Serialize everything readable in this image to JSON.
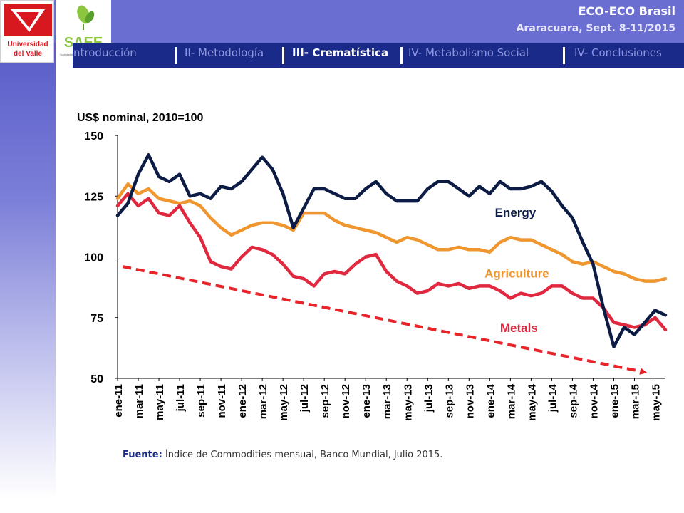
{
  "header": {
    "title": "ECO-ECO Brasil",
    "subtitle": "Araracuara, Sept. 8-11/2015",
    "logo_univalle_line1": "Universidad",
    "logo_univalle_line2": "del Valle",
    "logo_saee_text": "SAEE",
    "logo_saee_tagline": "Sociedad Andina de Economía Ecológica"
  },
  "nav": {
    "items": [
      {
        "label": "I- Introducción",
        "active": false
      },
      {
        "label": "II- Metodología",
        "active": false
      },
      {
        "label": "III- Crematística",
        "active": true
      },
      {
        "label": "IV- Metabolismo Social",
        "active": false
      },
      {
        "label": "IV- Conclusiones",
        "active": false
      }
    ]
  },
  "colors": {
    "energy": "#0d1c44",
    "agriculture": "#f0962e",
    "metals": "#e0283f",
    "trend": "#e8242b",
    "nav_bg": "#1a2a88",
    "top_bar": "#6b6ed1"
  },
  "chart_data": {
    "type": "line",
    "ylabel": "US$ nominal, 2010=100",
    "ylim": [
      50,
      150
    ],
    "yticks": [
      50,
      75,
      100,
      125,
      150
    ],
    "grid": false,
    "tick_labels": [
      "ene-11",
      "mar-11",
      "may-11",
      "jul-11",
      "sep-11",
      "nov-11",
      "ene-12",
      "mar-12",
      "may-12",
      "jul-12",
      "sep-12",
      "nov-12",
      "ene-13",
      "mar-13",
      "may-13",
      "jul-13",
      "sep-13",
      "nov-13",
      "ene-14",
      "mar-14",
      "may-14",
      "jul-14",
      "sep-14",
      "nov-14",
      "ene-15",
      "mar-15",
      "may-15"
    ],
    "series": [
      {
        "name": "Energy",
        "key": "energy",
        "values": [
          117,
          122,
          134,
          142,
          133,
          131,
          134,
          125,
          126,
          124,
          129,
          128,
          131,
          136,
          141,
          136,
          126,
          112,
          120,
          128,
          128,
          126,
          124,
          124,
          128,
          131,
          126,
          123,
          123,
          123,
          128,
          131,
          131,
          128,
          125,
          129,
          126,
          131,
          128,
          128,
          129,
          131,
          127,
          121,
          116,
          106,
          97,
          79,
          63,
          71,
          68,
          73,
          78,
          76
        ]
      },
      {
        "name": "Agriculture",
        "key": "agriculture",
        "values": [
          124,
          130,
          126,
          128,
          124,
          123,
          122,
          123,
          121,
          116,
          112,
          109,
          111,
          113,
          114,
          114,
          113,
          111,
          118,
          118,
          118,
          115,
          113,
          112,
          111,
          110,
          108,
          106,
          108,
          107,
          105,
          103,
          103,
          104,
          103,
          103,
          102,
          106,
          108,
          107,
          107,
          105,
          103,
          101,
          98,
          97,
          98,
          96,
          94,
          93,
          91,
          90,
          90,
          91
        ]
      },
      {
        "name": "Metals",
        "key": "metals",
        "values": [
          121,
          126,
          121,
          124,
          118,
          117,
          121,
          114,
          108,
          98,
          96,
          95,
          100,
          104,
          103,
          101,
          97,
          92,
          91,
          88,
          93,
          94,
          93,
          97,
          100,
          101,
          94,
          90,
          88,
          85,
          86,
          89,
          88,
          89,
          87,
          88,
          88,
          86,
          83,
          85,
          84,
          85,
          88,
          88,
          85,
          83,
          83,
          79,
          73,
          72,
          71,
          72,
          75,
          70
        ]
      }
    ],
    "series_labels": {
      "energy": "Energy",
      "agriculture": "Agriculture",
      "metals": "Metals"
    },
    "trend_arrow": {
      "from": {
        "index": 0.5,
        "value": 96
      },
      "to": {
        "index": 51.5,
        "value": 52
      }
    }
  },
  "source": {
    "label": "Fuente:",
    "text": "Índice de Commodities mensual, Banco Mundial, Julio 2015."
  }
}
